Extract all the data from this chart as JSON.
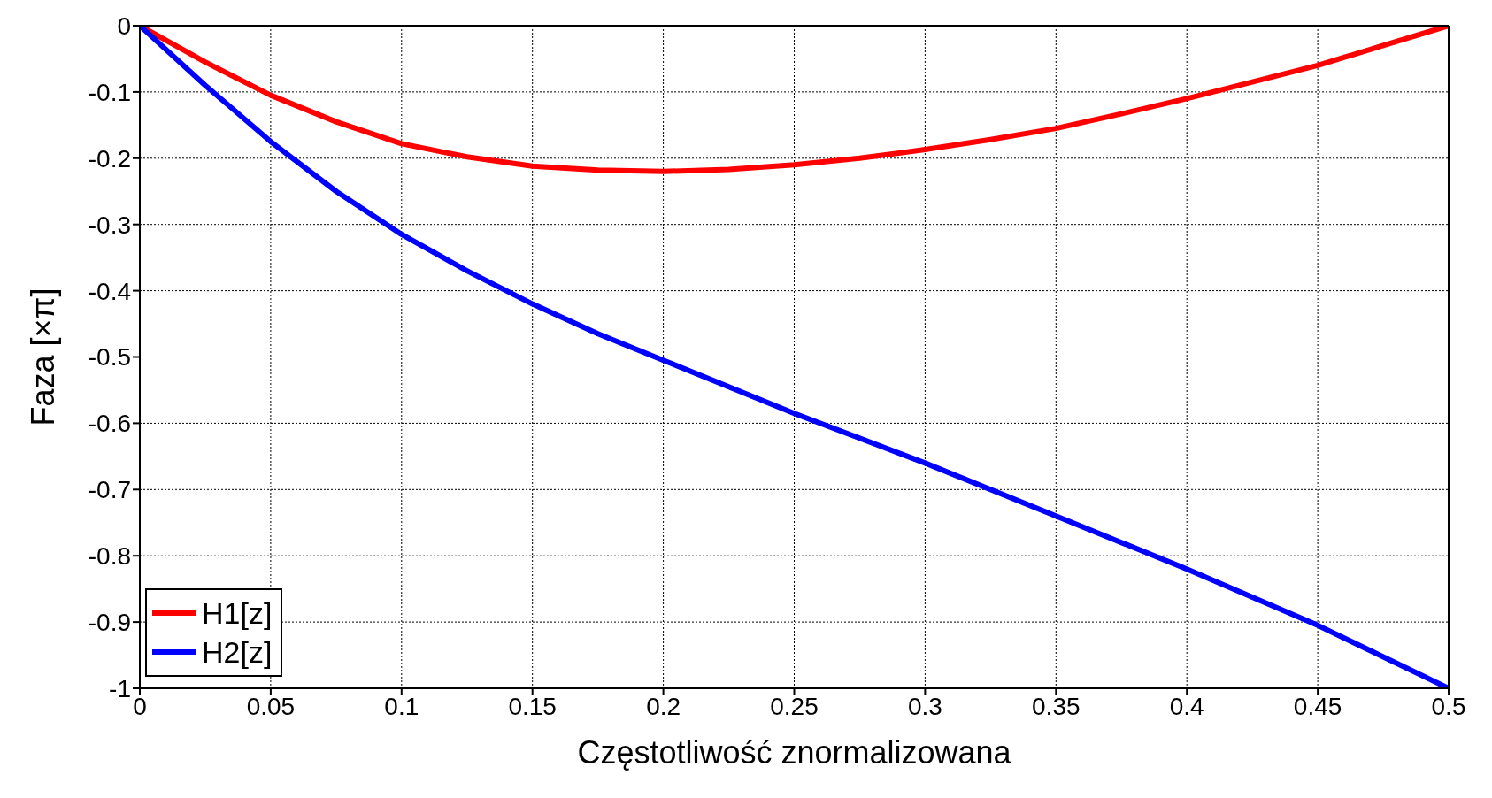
{
  "chart_data": {
    "type": "line",
    "xlabel": "Częstotliwość znormalizowana",
    "ylabel": "Faza [×π]",
    "xlim": [
      0,
      0.5
    ],
    "xticks": [
      0,
      0.05,
      0.1,
      0.15,
      0.2,
      0.25,
      0.3,
      0.35,
      0.4,
      0.45,
      0.5
    ],
    "ylim": [
      -1,
      0
    ],
    "yticks": [
      -1,
      -0.9,
      -0.8,
      -0.7,
      -0.6,
      -0.5,
      -0.4,
      -0.3,
      -0.2,
      -0.1,
      0
    ],
    "grid": true,
    "legend": "bottom left",
    "marker": "none",
    "line_style": "solid",
    "series": [
      {
        "name": "H1[z]",
        "color": "#ff0000",
        "x": [
          0,
          0.025,
          0.05,
          0.075,
          0.1,
          0.125,
          0.15,
          0.175,
          0.2,
          0.225,
          0.25,
          0.275,
          0.3,
          0.325,
          0.35,
          0.375,
          0.4,
          0.425,
          0.45,
          0.475,
          0.5
        ],
        "values": [
          0,
          -0.055,
          -0.105,
          -0.145,
          -0.178,
          -0.198,
          -0.212,
          -0.218,
          -0.22,
          -0.217,
          -0.21,
          -0.2,
          -0.187,
          -0.172,
          -0.155,
          -0.133,
          -0.11,
          -0.085,
          -0.06,
          -0.03,
          0
        ]
      },
      {
        "name": "H2[z]",
        "color": "#0000ff",
        "x": [
          0,
          0.025,
          0.05,
          0.075,
          0.1,
          0.125,
          0.15,
          0.175,
          0.2,
          0.25,
          0.3,
          0.35,
          0.4,
          0.45,
          0.5
        ],
        "values": [
          0,
          -0.09,
          -0.175,
          -0.25,
          -0.315,
          -0.37,
          -0.42,
          -0.465,
          -0.505,
          -0.585,
          -0.66,
          -0.74,
          -0.82,
          -0.905,
          -1
        ]
      }
    ]
  }
}
